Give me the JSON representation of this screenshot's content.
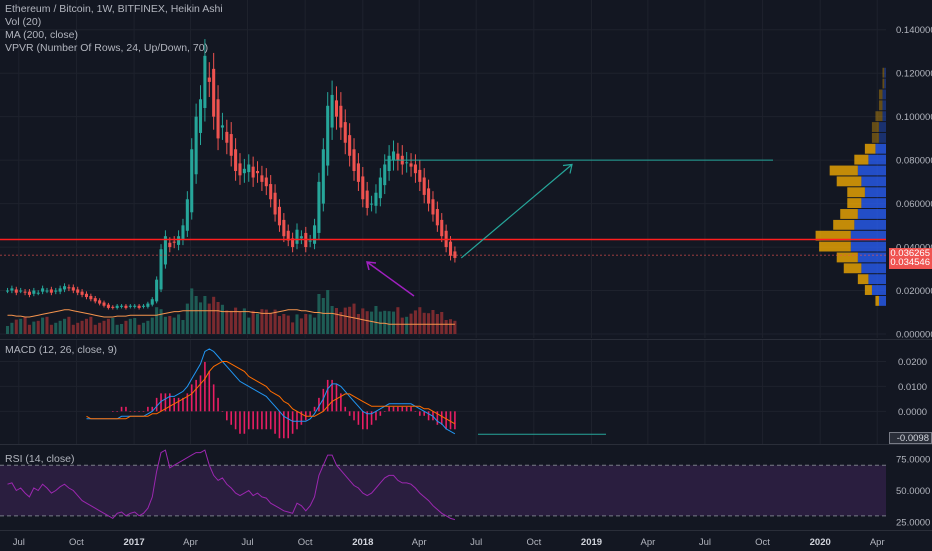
{
  "header": {
    "title": "Ethereum / Bitcoin, 1W, BITFINEX, Heikin Ashi",
    "vol": "Vol (20)",
    "ma": "MA (200, close)",
    "vpvr": "VPVR (Number Of Rows, 24, Up/Down, 70)"
  },
  "macd_legend": "MACD (12, 26, close, 9)",
  "rsi_legend": "RSI (14, close)",
  "colors": {
    "bg": "#131722",
    "up": "#26a69a",
    "down": "#ef5350",
    "vol_up": "#1e5c55",
    "vol_down": "#7a2a2f",
    "ma": "#f5944d",
    "macd": "#2196f3",
    "signal": "#ff6d00",
    "hist": "#e91e63",
    "rsi": "#9c27b0",
    "rsi_band": "#2a1e3f",
    "red_line": "#ff1e1e",
    "teal_line": "#26a69a",
    "arrow_purple": "#a020c0",
    "vpvr_up": "#2962ff",
    "vpvr_down": "#ffb300"
  },
  "chart_data": [
    {
      "type": "candlestick",
      "pane": "main",
      "ylim": [
        0,
        0.15
      ],
      "yticks": [
        "0.140000",
        "0.120000",
        "0.100000",
        "0.080000",
        "0.060000",
        "0.040000",
        "0.020000",
        "0.000000"
      ],
      "price_tags": [
        {
          "label": "0.036265",
          "color": "#ef5350",
          "value": 0.036265
        },
        {
          "label": "0.034546",
          "color": "#ef5350",
          "value": 0.034546
        }
      ],
      "horizontal_line": 0.0435,
      "target_line": 0.08,
      "x_start": "2016-06-13",
      "week_days": 7,
      "ohlc_close": [
        0.02,
        0.021,
        0.019,
        0.02,
        0.019,
        0.018,
        0.02,
        0.019,
        0.021,
        0.02,
        0.019,
        0.02,
        0.021,
        0.022,
        0.021,
        0.02,
        0.019,
        0.018,
        0.017,
        0.016,
        0.015,
        0.014,
        0.013,
        0.012,
        0.012,
        0.013,
        0.013,
        0.012,
        0.013,
        0.013,
        0.012,
        0.013,
        0.014,
        0.016,
        0.025,
        0.039,
        0.045,
        0.04,
        0.042,
        0.045,
        0.05,
        0.062,
        0.085,
        0.1,
        0.108,
        0.128,
        0.116,
        0.1,
        0.09,
        0.096,
        0.088,
        0.082,
        0.075,
        0.073,
        0.076,
        0.078,
        0.072,
        0.074,
        0.07,
        0.068,
        0.062,
        0.055,
        0.05,
        0.045,
        0.043,
        0.04,
        0.048,
        0.045,
        0.04,
        0.043,
        0.05,
        0.07,
        0.085,
        0.105,
        0.11,
        0.1,
        0.095,
        0.088,
        0.082,
        0.075,
        0.07,
        0.062,
        0.058,
        0.06,
        0.065,
        0.072,
        0.078,
        0.082,
        0.084,
        0.08,
        0.078,
        0.079,
        0.077,
        0.074,
        0.07,
        0.064,
        0.06,
        0.055,
        0.05,
        0.045,
        0.04,
        0.036,
        0.035
      ],
      "ma200": [
        0.012,
        0.012,
        0.011,
        0.011,
        0.01,
        0.01,
        0.011,
        0.012,
        0.013,
        0.014,
        0.015,
        0.016,
        0.017,
        0.018,
        0.018,
        0.017,
        0.016,
        0.015,
        0.014,
        0.013,
        0.012,
        0.011,
        0.01,
        0.01,
        0.01,
        0.011,
        0.011,
        0.011,
        0.012,
        0.012,
        0.012,
        0.012,
        0.012,
        0.012,
        0.012,
        0.013,
        0.014,
        0.015,
        0.016,
        0.016,
        0.017,
        0.017,
        0.017,
        0.017,
        0.017,
        0.017,
        0.017,
        0.017,
        0.017,
        0.016,
        0.016,
        0.016,
        0.016,
        0.016,
        0.016,
        0.016,
        0.015,
        0.015,
        0.014,
        0.014,
        0.014,
        0.015,
        0.016,
        0.017,
        0.018,
        0.018,
        0.018,
        0.017,
        0.017,
        0.016,
        0.015,
        0.015,
        0.014,
        0.014,
        0.014,
        0.013,
        0.012,
        0.011,
        0.01,
        0.009,
        0.008,
        0.007,
        0.006,
        0.005,
        0.004,
        0.003,
        0.003,
        0.002,
        0.002,
        0.002,
        0.002,
        0.002,
        0.002,
        0.002,
        0.002,
        0.002,
        0.002,
        0.002,
        0.002,
        0.002,
        0.002,
        0.002,
        0.002
      ],
      "vpvr_levels": [
        {
          "price": 0.015,
          "up": 0.2,
          "down": 0.1
        },
        {
          "price": 0.02,
          "up": 0.4,
          "down": 0.2
        },
        {
          "price": 0.025,
          "up": 0.5,
          "down": 0.3
        },
        {
          "price": 0.03,
          "up": 0.7,
          "down": 0.5
        },
        {
          "price": 0.035,
          "up": 0.8,
          "down": 0.6
        },
        {
          "price": 0.04,
          "up": 1.0,
          "down": 0.9
        },
        {
          "price": 0.045,
          "up": 1.0,
          "down": 1.0
        },
        {
          "price": 0.05,
          "up": 0.9,
          "down": 0.6
        },
        {
          "price": 0.055,
          "up": 0.8,
          "down": 0.5
        },
        {
          "price": 0.06,
          "up": 0.7,
          "down": 0.4
        },
        {
          "price": 0.065,
          "up": 0.6,
          "down": 0.5
        },
        {
          "price": 0.07,
          "up": 0.7,
          "down": 0.7
        },
        {
          "price": 0.075,
          "up": 0.8,
          "down": 0.8
        },
        {
          "price": 0.08,
          "up": 0.5,
          "down": 0.4
        },
        {
          "price": 0.085,
          "up": 0.3,
          "down": 0.3
        },
        {
          "price": 0.09,
          "up": 0.2,
          "down": 0.2
        },
        {
          "price": 0.095,
          "up": 0.2,
          "down": 0.2
        },
        {
          "price": 0.1,
          "up": 0.1,
          "down": 0.2
        },
        {
          "price": 0.105,
          "up": 0.1,
          "down": 0.1
        },
        {
          "price": 0.11,
          "up": 0.1,
          "down": 0.1
        },
        {
          "price": 0.115,
          "up": 0.05,
          "down": 0.05
        },
        {
          "price": 0.12,
          "up": 0.05,
          "down": 0.05
        }
      ]
    },
    {
      "type": "line",
      "pane": "macd",
      "ylim": [
        -0.0115,
        0.027
      ],
      "yticks": [
        "0.0200",
        "0.0100",
        "0.0000"
      ],
      "price_tag": {
        "label": "-0.0098",
        "value": -0.0098
      },
      "macd": [
        0.0,
        0.0,
        0.0,
        0.0,
        0.0,
        0.0,
        0.0,
        0.0,
        0.0,
        0.0,
        0.0,
        -0.001,
        -0.001,
        -0.001,
        -0.002,
        -0.003,
        -0.003,
        -0.003,
        -0.003,
        -0.003,
        -0.003,
        -0.003,
        -0.003,
        -0.003,
        -0.003,
        -0.003,
        -0.002,
        -0.002,
        -0.002,
        -0.002,
        -0.002,
        -0.002,
        -0.001,
        0.0,
        0.002,
        0.004,
        0.005,
        0.006,
        0.006,
        0.007,
        0.008,
        0.01,
        0.013,
        0.016,
        0.019,
        0.024,
        0.025,
        0.024,
        0.022,
        0.02,
        0.018,
        0.016,
        0.014,
        0.012,
        0.011,
        0.01,
        0.009,
        0.008,
        0.007,
        0.006,
        0.004,
        0.002,
        0.0,
        -0.002,
        -0.003,
        -0.004,
        -0.004,
        -0.004,
        -0.004,
        -0.003,
        -0.001,
        0.002,
        0.005,
        0.009,
        0.011,
        0.011,
        0.01,
        0.008,
        0.006,
        0.004,
        0.002,
        0.0,
        -0.001,
        -0.001,
        0.0,
        0.001,
        0.002,
        0.003,
        0.003,
        0.003,
        0.003,
        0.003,
        0.003,
        0.002,
        0.001,
        0.0,
        -0.001,
        -0.002,
        -0.004,
        -0.005,
        -0.007,
        -0.008,
        -0.009
      ],
      "signal": [
        0.0,
        0.0,
        0.0,
        0.0,
        0.0,
        0.0,
        0.0,
        0.0,
        0.0,
        0.0,
        0.0,
        0.0,
        0.0,
        -0.001,
        -0.001,
        -0.001,
        -0.002,
        -0.002,
        -0.002,
        -0.003,
        -0.003,
        -0.003,
        -0.003,
        -0.003,
        -0.003,
        -0.003,
        -0.003,
        -0.003,
        -0.002,
        -0.002,
        -0.002,
        -0.002,
        -0.002,
        -0.001,
        -0.001,
        0.0,
        0.001,
        0.002,
        0.003,
        0.004,
        0.005,
        0.006,
        0.007,
        0.009,
        0.011,
        0.013,
        0.016,
        0.018,
        0.019,
        0.02,
        0.02,
        0.019,
        0.018,
        0.017,
        0.016,
        0.014,
        0.013,
        0.012,
        0.011,
        0.01,
        0.008,
        0.007,
        0.006,
        0.004,
        0.003,
        0.001,
        0.0,
        -0.001,
        -0.002,
        -0.002,
        -0.002,
        -0.001,
        0.0,
        0.002,
        0.004,
        0.005,
        0.006,
        0.007,
        0.007,
        0.006,
        0.005,
        0.004,
        0.003,
        0.002,
        0.002,
        0.002,
        0.002,
        0.002,
        0.002,
        0.002,
        0.002,
        0.002,
        0.002,
        0.002,
        0.002,
        0.001,
        0.001,
        0.0,
        -0.001,
        -0.002,
        -0.003,
        -0.004,
        -0.005
      ],
      "teal_hline": -0.0092
    },
    {
      "type": "line",
      "pane": "rsi",
      "ylim": [
        18,
        86
      ],
      "yticks": [
        "75.0000",
        "50.0000",
        "25.0000"
      ],
      "band": [
        30,
        70
      ],
      "rsi": [
        55,
        56,
        50,
        52,
        48,
        45,
        52,
        50,
        55,
        52,
        48,
        50,
        53,
        55,
        52,
        50,
        46,
        42,
        40,
        38,
        36,
        34,
        32,
        30,
        28,
        32,
        33,
        30,
        32,
        33,
        30,
        32,
        36,
        45,
        65,
        80,
        82,
        68,
        70,
        72,
        74,
        76,
        78,
        80,
        80,
        82,
        70,
        62,
        58,
        60,
        55,
        52,
        48,
        46,
        48,
        50,
        46,
        48,
        45,
        44,
        40,
        38,
        36,
        34,
        33,
        32,
        40,
        38,
        34,
        38,
        45,
        62,
        70,
        78,
        78,
        70,
        66,
        62,
        58,
        54,
        52,
        48,
        46,
        48,
        52,
        56,
        60,
        62,
        62,
        58,
        56,
        56,
        55,
        52,
        48,
        45,
        42,
        38,
        35,
        32,
        30,
        28,
        27
      ]
    }
  ],
  "time_axis": {
    "labels": [
      "Jul",
      "Oct",
      "2017",
      "Apr",
      "Jul",
      "Oct",
      "2018",
      "Apr",
      "Jul",
      "Oct",
      "2019",
      "Apr",
      "Jul",
      "Oct",
      "2020",
      "Apr"
    ],
    "dates": [
      "2016-07-01",
      "2016-10-01",
      "2017-01-01",
      "2017-04-01",
      "2017-07-01",
      "2017-10-01",
      "2018-01-01",
      "2018-04-01",
      "2018-07-01",
      "2018-10-01",
      "2019-01-01",
      "2019-04-01",
      "2019-07-01",
      "2019-10-01",
      "2020-01-01",
      "2020-04-01"
    ],
    "bold": [
      false,
      false,
      true,
      false,
      false,
      false,
      true,
      false,
      false,
      false,
      true,
      false,
      false,
      false,
      true,
      false
    ]
  }
}
